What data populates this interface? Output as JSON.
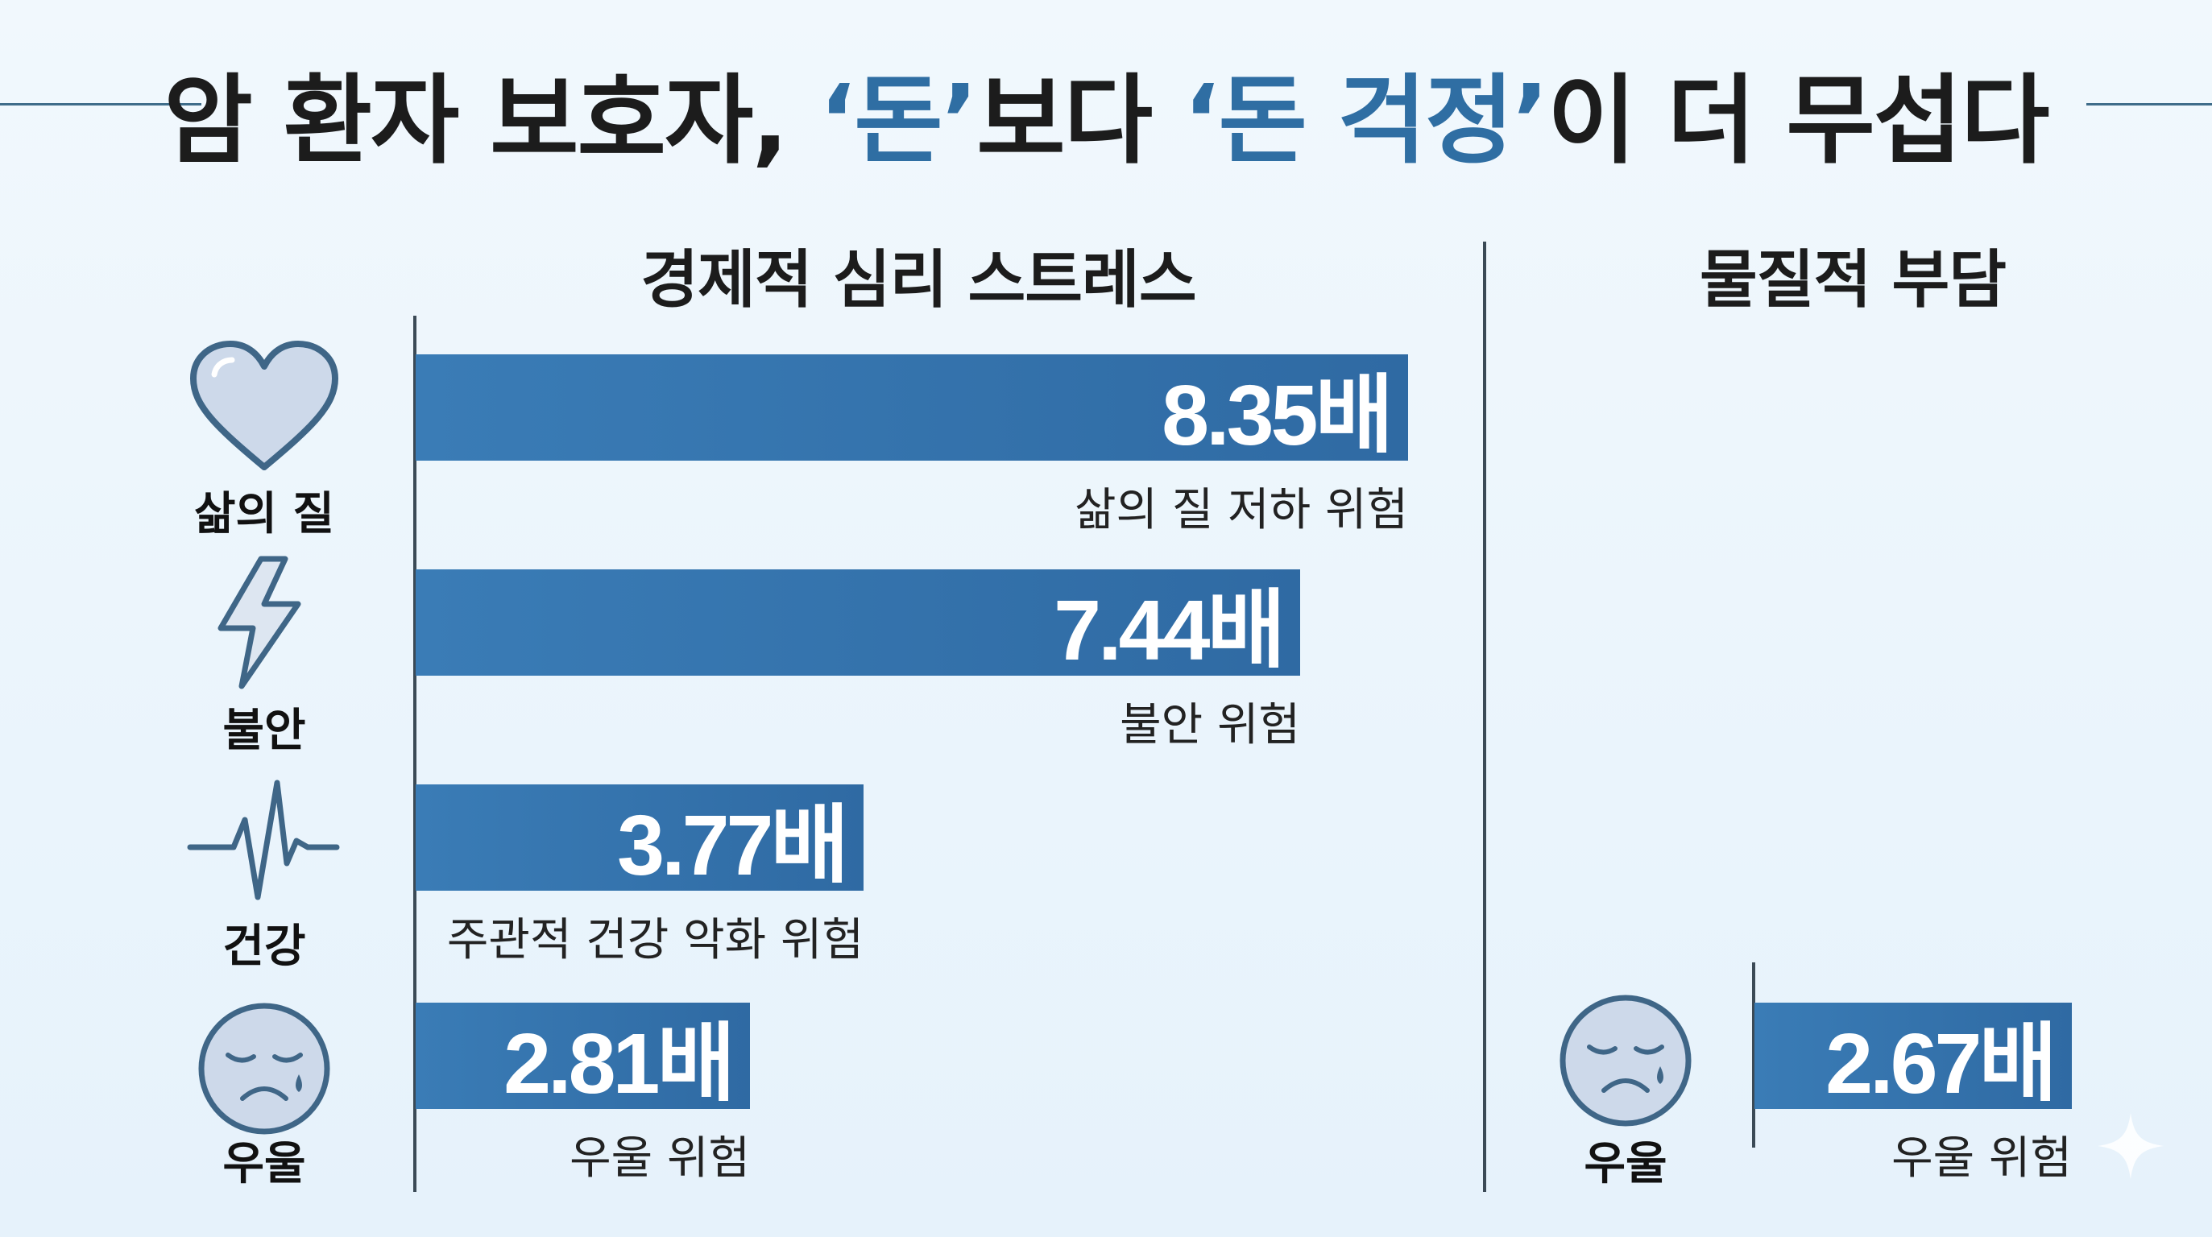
{
  "title": {
    "part1": "암 환자 보호자, ",
    "hl1": "‘돈’",
    "part2": "보다 ",
    "hl2": "‘돈 걱정’",
    "part3": "이 더 무섭다"
  },
  "sections": {
    "left_title": "경제적 심리 스트레스",
    "right_title": "물질적 부담"
  },
  "icons": [
    {
      "name": "heart-icon",
      "label": "삶의 질"
    },
    {
      "name": "lightning-icon",
      "label": "불안"
    },
    {
      "name": "heartbeat-icon",
      "label": "건강"
    },
    {
      "name": "sad-face-icon",
      "label": "우울"
    }
  ],
  "right_icon": {
    "name": "sad-face-icon",
    "label": "우울"
  },
  "colors": {
    "bar": "#3475af",
    "highlight": "#2f6ea3",
    "icon_stroke": "#3f6687",
    "icon_fill": "#cdd9ea"
  },
  "chart_data": [
    {
      "type": "bar",
      "orientation": "horizontal",
      "title": "경제적 심리 스트레스",
      "categories": [
        "삶의 질 저하 위험",
        "불안 위험",
        "주관적 건강 악화 위험",
        "우울 위험"
      ],
      "values": [
        8.35,
        7.44,
        3.77,
        2.81
      ],
      "value_labels": [
        "8.35배",
        "7.44배",
        "3.77배",
        "2.81배"
      ],
      "unit": "배"
    },
    {
      "type": "bar",
      "orientation": "horizontal",
      "title": "물질적 부담",
      "categories": [
        "우울 위험"
      ],
      "values": [
        2.67
      ],
      "value_labels": [
        "2.67배"
      ],
      "unit": "배"
    }
  ]
}
